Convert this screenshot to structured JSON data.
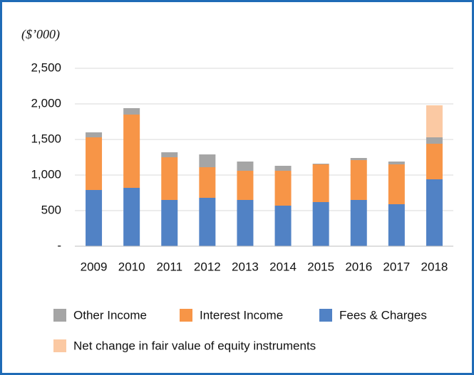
{
  "chart_data": {
    "type": "stacked_bar",
    "title": "($’000)",
    "categories": [
      "2009",
      "2010",
      "2011",
      "2012",
      "2013",
      "2014",
      "2015",
      "2016",
      "2017",
      "2018"
    ],
    "series": [
      {
        "name": "Fees & Charges",
        "color": "#5182c5",
        "values": [
          790,
          820,
          650,
          680,
          650,
          570,
          620,
          650,
          590,
          940
        ]
      },
      {
        "name": "Interest Income",
        "color": "#f79547",
        "values": [
          740,
          1030,
          600,
          430,
          410,
          490,
          530,
          560,
          560,
          500
        ]
      },
      {
        "name": "Other Income",
        "color": "#a5a5a5",
        "values": [
          70,
          90,
          70,
          180,
          130,
          70,
          10,
          30,
          40,
          90
        ]
      },
      {
        "name": "Net change in fair value of equity instruments",
        "color": "#fbc9a3",
        "values": [
          null,
          null,
          null,
          null,
          null,
          null,
          null,
          null,
          null,
          450
        ]
      }
    ],
    "ylim": [
      0,
      2500
    ],
    "yticks": [
      {
        "value": 0,
        "label": "-"
      },
      500,
      {
        "value": 1000,
        "label": "1,000"
      },
      {
        "value": 1500,
        "label": "1,500"
      },
      {
        "value": 2000,
        "label": "2,000"
      },
      {
        "value": 2500,
        "label": "2,500"
      }
    ],
    "grid": true
  }
}
